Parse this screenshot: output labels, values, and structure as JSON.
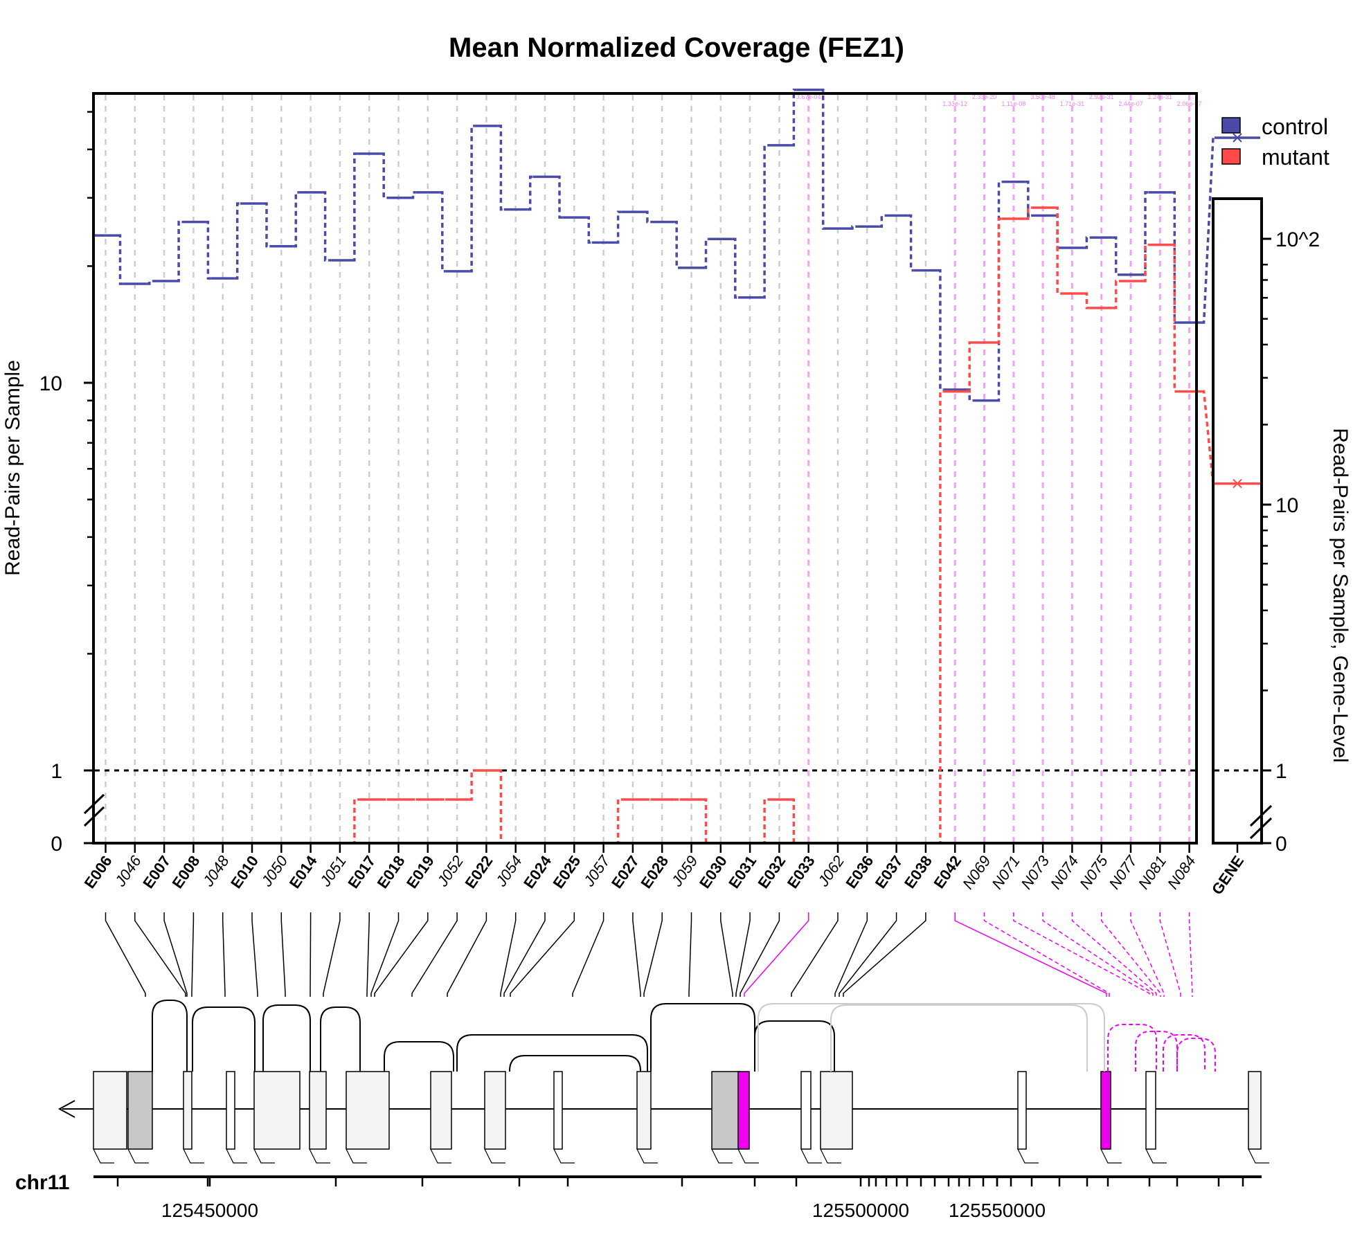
{
  "colors": {
    "control": "#4a4aa8",
    "mutant": "#ff4a4a",
    "highlight": "#ee00ee",
    "highlight_light": "#f4a0f4",
    "grid": "#cccccc",
    "gene_box": "#f3f3f3",
    "gene_box_dark": "#c8c8c8"
  },
  "chart_data": {
    "type": "line",
    "title": "Mean Normalized Coverage (FEZ1)",
    "ylabel": "Read-Pairs per Sample",
    "ylabel_right": "Read-Pairs per Sample, Gene-Level",
    "y_scale": "log with break at 1 (linear 0-1 below)",
    "y_ticks": [
      "0",
      "1",
      "10"
    ],
    "y_right_ticks": [
      "0",
      "1",
      "10",
      "10^2"
    ],
    "ref_line": 1,
    "legend": {
      "entries": [
        "control",
        "mutant"
      ],
      "position": "top-right"
    },
    "features": [
      "E006",
      "J046",
      "E007",
      "E008",
      "J048",
      "E010",
      "J050",
      "E014",
      "J051",
      "E017",
      "E018",
      "E019",
      "J052",
      "E022",
      "J054",
      "E024",
      "E025",
      "J057",
      "E027",
      "E028",
      "J059",
      "E030",
      "E031",
      "E032",
      "E033",
      "J062",
      "E036",
      "E037",
      "E038",
      "E042",
      "N069",
      "N071",
      "N073",
      "N074",
      "N075",
      "N077",
      "N081",
      "N084"
    ],
    "feature_kind": [
      "exon",
      "junction",
      "exon",
      "exon",
      "junction",
      "exon",
      "junction",
      "exon",
      "junction",
      "exon",
      "exon",
      "exon",
      "junction",
      "exon",
      "junction",
      "exon",
      "exon",
      "junction",
      "exon",
      "exon",
      "junction",
      "exon",
      "exon",
      "exon",
      "exon",
      "junction",
      "exon",
      "exon",
      "exon",
      "exon",
      "novel",
      "novel",
      "novel",
      "novel",
      "novel",
      "novel",
      "novel",
      "novel"
    ],
    "highlighted": [
      "E033",
      "E042",
      "N069",
      "N071",
      "N073",
      "N074",
      "N075",
      "N077",
      "N081",
      "N084"
    ],
    "pvalues": [
      "3.67e-04",
      "1.33e-12",
      "2.33e-20",
      "1.11e-08",
      "3.50e-48",
      "1.71e-31",
      "2.92e-31",
      "2.44e-07",
      "1.24e-31",
      "2.06e-07"
    ],
    "series": [
      {
        "name": "control",
        "values": [
          24,
          18,
          18.3,
          26,
          18.6,
          29,
          22.5,
          31,
          20.7,
          39,
          30,
          31,
          19.4,
          46,
          28,
          34,
          26.7,
          23,
          27.6,
          26,
          19.8,
          23.5,
          16.6,
          41,
          57,
          25,
          25.3,
          27,
          19.5,
          9.6,
          9,
          33,
          27,
          22.3,
          23.7,
          19,
          31,
          14.3
        ]
      },
      {
        "name": "mutant",
        "values": [
          0,
          0,
          0,
          0,
          0,
          0,
          0,
          0,
          0,
          0.6,
          0.6,
          0.6,
          0.6,
          1,
          0,
          0,
          0,
          0,
          0.6,
          0.6,
          0.6,
          0,
          0,
          0.6,
          0,
          0,
          0,
          0,
          0,
          9.5,
          12.7,
          26.5,
          28.3,
          17,
          15.6,
          18.3,
          22.7,
          9.5
        ]
      }
    ],
    "gene_level": {
      "label": "GENE",
      "control": 240,
      "mutant": 12
    },
    "genomic_axis": {
      "chromosome": "chr11",
      "labels": [
        "125450000",
        "125500000",
        "125550000"
      ]
    }
  }
}
